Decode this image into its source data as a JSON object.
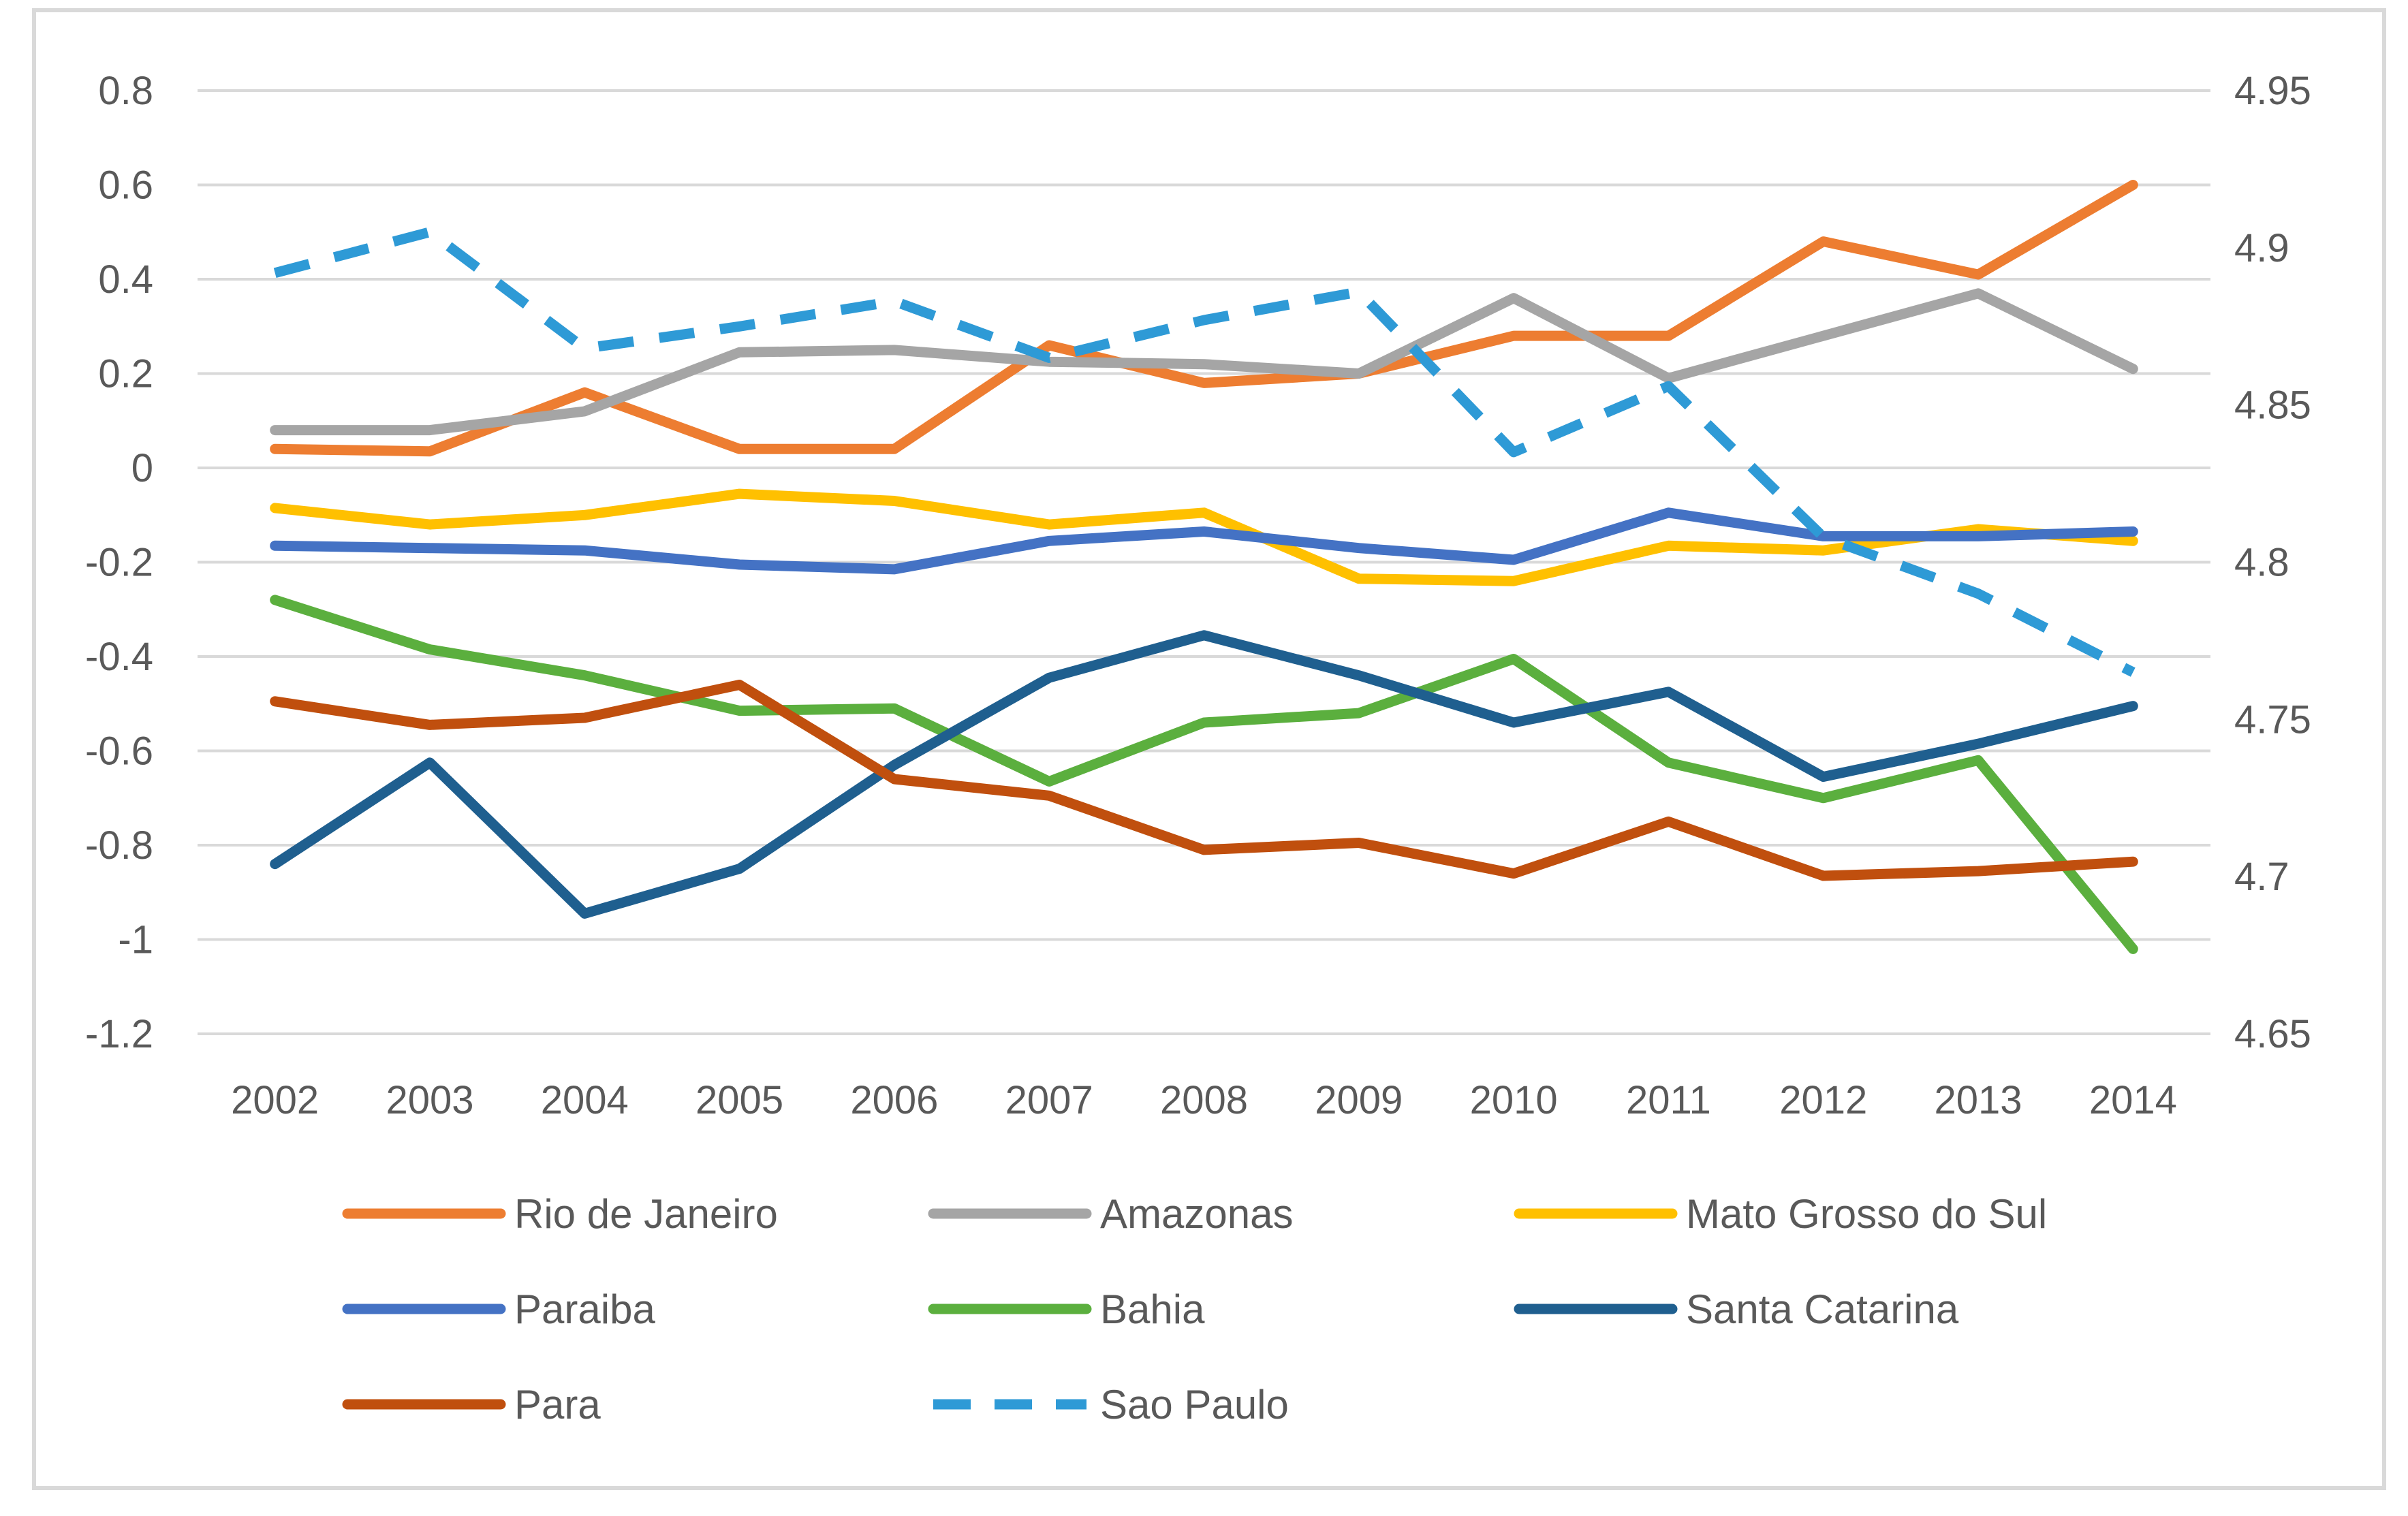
{
  "chart_data": {
    "type": "line",
    "title": "",
    "xlabel": "",
    "ylabel": "",
    "categories": [
      "2002",
      "2003",
      "2004",
      "2005",
      "2006",
      "2007",
      "2008",
      "2009",
      "2010",
      "2011",
      "2012",
      "2013",
      "2014"
    ],
    "y_axis_left": {
      "range": [
        -1.2,
        0.8
      ],
      "ticks": [
        0.8,
        0.6,
        0.4,
        0.2,
        0,
        -0.2,
        -0.4,
        -0.6,
        -0.8,
        -1,
        -1.2
      ],
      "tick_labels": [
        "0.8",
        "0.6",
        "0.4",
        "0.2",
        "0",
        "-0.2",
        "-0.4",
        "-0.6",
        "-0.8",
        "-1",
        "-1.2"
      ]
    },
    "y_axis_right": {
      "range": [
        4.65,
        4.95
      ],
      "ticks": [
        4.95,
        4.9,
        4.85,
        4.8,
        4.75,
        4.7,
        4.65
      ],
      "tick_labels": [
        "4.95",
        "4.9",
        "4.85",
        "4.8",
        "4.75",
        "4.7",
        "4.65"
      ]
    },
    "grid": true,
    "legend_position": "bottom",
    "series": [
      {
        "name": "Rio de Janeiro",
        "axis": "left",
        "color": "#ED7D31",
        "dashed": false,
        "values": [
          0.04,
          0.035,
          0.16,
          0.04,
          0.04,
          0.26,
          0.18,
          0.2,
          0.28,
          0.28,
          0.48,
          0.41,
          0.6
        ]
      },
      {
        "name": "Amazonas",
        "axis": "left",
        "color": "#A5A5A5",
        "dashed": false,
        "values": [
          0.08,
          0.08,
          0.12,
          0.245,
          0.25,
          0.225,
          0.22,
          0.2,
          0.36,
          0.19,
          0.28,
          0.37,
          0.21
        ]
      },
      {
        "name": "Mato Grosso do Sul",
        "axis": "left",
        "color": "#FFC000",
        "dashed": false,
        "values": [
          -0.085,
          -0.12,
          -0.1,
          -0.055,
          -0.07,
          -0.12,
          -0.095,
          -0.235,
          -0.24,
          -0.165,
          -0.175,
          -0.13,
          -0.155
        ]
      },
      {
        "name": "Paraiba",
        "axis": "left",
        "color": "#4472C4",
        "dashed": false,
        "values": [
          -0.165,
          -0.17,
          -0.175,
          -0.205,
          -0.215,
          -0.155,
          -0.135,
          -0.17,
          -0.195,
          -0.095,
          -0.145,
          -0.145,
          -0.135
        ]
      },
      {
        "name": "Bahia",
        "axis": "left",
        "color": "#5BAF3E",
        "dashed": false,
        "values": [
          -0.28,
          -0.385,
          -0.44,
          -0.515,
          -0.51,
          -0.665,
          -0.54,
          -0.52,
          -0.405,
          -0.625,
          -0.7,
          -0.62,
          -1.02
        ]
      },
      {
        "name": "Santa Catarina",
        "axis": "left",
        "color": "#1F5F8F",
        "dashed": false,
        "values": [
          -0.84,
          -0.625,
          -0.945,
          -0.85,
          -0.63,
          -0.445,
          -0.355,
          -0.44,
          -0.54,
          -0.475,
          -0.655,
          -0.585,
          -0.505
        ]
      },
      {
        "name": "Para",
        "axis": "left",
        "color": "#C04F0E",
        "dashed": false,
        "values": [
          -0.495,
          -0.545,
          -0.53,
          -0.46,
          -0.66,
          -0.695,
          -0.81,
          -0.795,
          -0.86,
          -0.75,
          -0.865,
          -0.855,
          -0.835
        ]
      },
      {
        "name": "Sao Paulo",
        "axis": "right",
        "color": "#2E9AD6",
        "dashed": true,
        "values": [
          4.892,
          4.905,
          4.868,
          4.875,
          4.883,
          4.865,
          4.877,
          4.886,
          4.835,
          4.856,
          4.808,
          4.79,
          4.765
        ]
      }
    ]
  }
}
